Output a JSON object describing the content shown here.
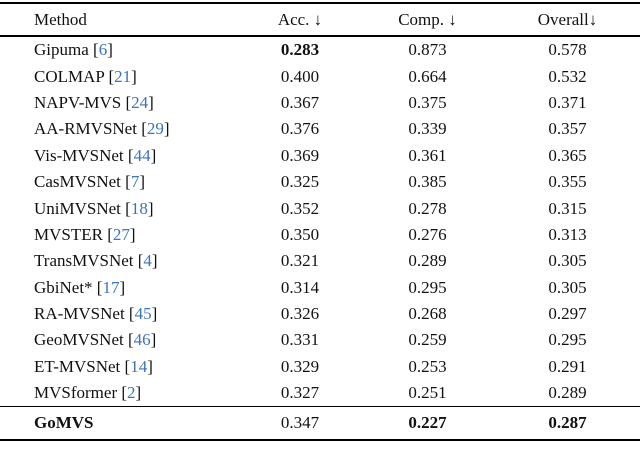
{
  "colors": {
    "citation_blue": "#3b74b9",
    "text": "#111111",
    "background": "#ffffff",
    "rule": "#000000"
  },
  "format": {
    "bracket_open": "[",
    "bracket_close": "]"
  },
  "table": {
    "columns": [
      {
        "label": "Method",
        "align": "left"
      },
      {
        "label": "Acc. ↓",
        "align": "center"
      },
      {
        "label": "Comp. ↓",
        "align": "center"
      },
      {
        "label": "Overall↓",
        "align": "center"
      }
    ],
    "rows": [
      {
        "method": "Gipuma",
        "cite": "6",
        "values": [
          "0.283",
          "0.873",
          "0.578"
        ],
        "bold": [
          true,
          false,
          false
        ]
      },
      {
        "method": "COLMAP",
        "cite": "21",
        "values": [
          "0.400",
          "0.664",
          "0.532"
        ],
        "bold": [
          false,
          false,
          false
        ]
      },
      {
        "method": "NAPV-MVS",
        "cite": "24",
        "values": [
          "0.367",
          "0.375",
          "0.371"
        ],
        "bold": [
          false,
          false,
          false
        ]
      },
      {
        "method": "AA-RMVSNet",
        "cite": "29",
        "values": [
          "0.376",
          "0.339",
          "0.357"
        ],
        "bold": [
          false,
          false,
          false
        ]
      },
      {
        "method": "Vis-MVSNet",
        "cite": "44",
        "values": [
          "0.369",
          "0.361",
          "0.365"
        ],
        "bold": [
          false,
          false,
          false
        ]
      },
      {
        "method": "CasMVSNet",
        "cite": "7",
        "values": [
          "0.325",
          "0.385",
          "0.355"
        ],
        "bold": [
          false,
          false,
          false
        ]
      },
      {
        "method": "UniMVSNet",
        "cite": "18",
        "values": [
          "0.352",
          "0.278",
          "0.315"
        ],
        "bold": [
          false,
          false,
          false
        ]
      },
      {
        "method": "MVSTER",
        "cite": "27",
        "values": [
          "0.350",
          "0.276",
          "0.313"
        ],
        "bold": [
          false,
          false,
          false
        ]
      },
      {
        "method": "TransMVSNet",
        "cite": "4",
        "values": [
          "0.321",
          "0.289",
          "0.305"
        ],
        "bold": [
          false,
          false,
          false
        ]
      },
      {
        "method": "GbiNet*",
        "cite": "17",
        "values": [
          "0.314",
          "0.295",
          "0.305"
        ],
        "bold": [
          false,
          false,
          false
        ]
      },
      {
        "method": "RA-MVSNet",
        "cite": "45",
        "values": [
          "0.326",
          "0.268",
          "0.297"
        ],
        "bold": [
          false,
          false,
          false
        ]
      },
      {
        "method": "GeoMVSNet",
        "cite": "46",
        "values": [
          "0.331",
          "0.259",
          "0.295"
        ],
        "bold": [
          false,
          false,
          false
        ]
      },
      {
        "method": "ET-MVSNet",
        "cite": "14",
        "values": [
          "0.329",
          "0.253",
          "0.291"
        ],
        "bold": [
          false,
          false,
          false
        ]
      },
      {
        "method": "MVSformer",
        "cite": "2",
        "values": [
          "0.327",
          "0.251",
          "0.289"
        ],
        "bold": [
          false,
          false,
          false
        ]
      }
    ],
    "footer": {
      "method": "GoMVS",
      "method_bold": true,
      "values": [
        "0.347",
        "0.227",
        "0.287"
      ],
      "bold": [
        false,
        true,
        true
      ]
    }
  }
}
